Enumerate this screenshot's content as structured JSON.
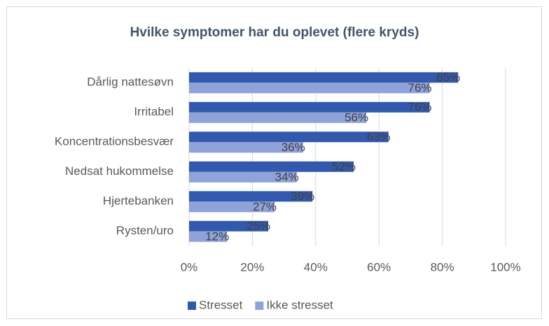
{
  "chart_data": {
    "type": "bar",
    "orientation": "horizontal",
    "title": "Hvilke symptomer har du oplevet (flere kryds)",
    "categories": [
      "Dårlig nattesøvn",
      "Irritabel",
      "Koncentrationsbesvær",
      "Nedsat hukommelse",
      "Hjertebanken",
      "Rysten/uro"
    ],
    "series": [
      {
        "name": "Stresset",
        "color": "#3259ad",
        "values": [
          85,
          76,
          63,
          52,
          39,
          25
        ],
        "value_labels": [
          "85%",
          "76%",
          "63%",
          "52%",
          "39%",
          "25%"
        ]
      },
      {
        "name": "Ikke stresset",
        "color": "#8fa2da",
        "values": [
          76,
          56,
          36,
          34,
          27,
          12
        ],
        "value_labels": [
          "76%",
          "56%",
          "36%",
          "34%",
          "27%",
          "12%"
        ]
      }
    ],
    "xlim": [
      0,
      100
    ],
    "xticks": [
      {
        "value": 0,
        "label": "0%"
      },
      {
        "value": 20,
        "label": "20%"
      },
      {
        "value": 40,
        "label": "40%"
      },
      {
        "value": 60,
        "label": "60%"
      },
      {
        "value": 80,
        "label": "80%"
      },
      {
        "value": 100,
        "label": "100%"
      }
    ],
    "grid": true,
    "legend": "bottom"
  }
}
